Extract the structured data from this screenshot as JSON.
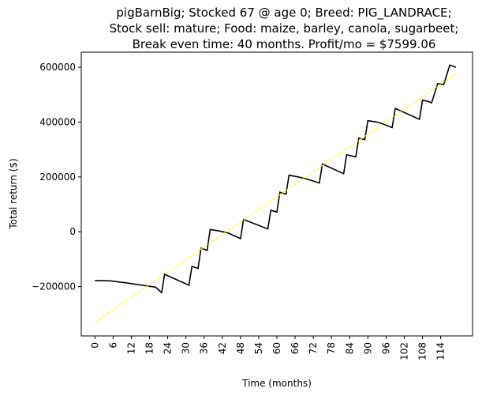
{
  "chart_data": {
    "type": "line",
    "title_lines": [
      "pigBarnBig; Stocked 67 @ age 0; Breed: PIG_LANDRACE;",
      "Stock sell: mature; Food: maize, barley, canola, sugarbeet;",
      "Break even time: 40 months. Profit/mo = $7599.06"
    ],
    "xlabel": "Time (months)",
    "ylabel": "Total return ($)",
    "xlim": [
      -4.5,
      124.5
    ],
    "ylim": [
      -380000,
      655000
    ],
    "xticks": [
      0,
      6,
      12,
      18,
      24,
      30,
      36,
      42,
      48,
      54,
      60,
      66,
      72,
      78,
      84,
      90,
      96,
      102,
      108,
      114
    ],
    "yticks": [
      -200000,
      0,
      200000,
      400000,
      600000
    ],
    "ytick_labels": [
      "−200000",
      "0",
      "200000",
      "400000",
      "600000"
    ],
    "series": [
      {
        "name": "Total return",
        "color": "#000000",
        "style": "solid",
        "x": [
          0,
          5,
          10,
          15,
          20,
          22,
          23,
          31,
          32,
          34,
          35,
          37,
          38,
          41,
          44,
          48,
          49,
          57,
          58,
          60,
          61,
          63,
          64,
          67,
          70,
          74,
          75,
          82,
          83,
          86,
          87,
          89,
          90,
          93,
          95,
          98,
          99,
          107,
          108,
          110,
          111,
          113,
          115,
          117,
          119
        ],
        "y": [
          -178000,
          -179000,
          -186000,
          -194000,
          -202000,
          -222000,
          -155000,
          -195000,
          -126000,
          -134000,
          -60000,
          -68000,
          8000,
          3000,
          -5000,
          -25000,
          45000,
          10000,
          78000,
          72000,
          144000,
          137000,
          206000,
          200000,
          192000,
          178000,
          247000,
          212000,
          281000,
          273000,
          342000,
          336000,
          405000,
          400000,
          393000,
          380000,
          450000,
          410000,
          480000,
          475000,
          470000,
          540000,
          537000,
          608000,
          600000
        ]
      },
      {
        "name": "Trend",
        "color": "#ffff00",
        "style": "dashed",
        "x": [
          0,
          119
        ],
        "y": [
          -330000,
          577000
        ]
      }
    ]
  }
}
